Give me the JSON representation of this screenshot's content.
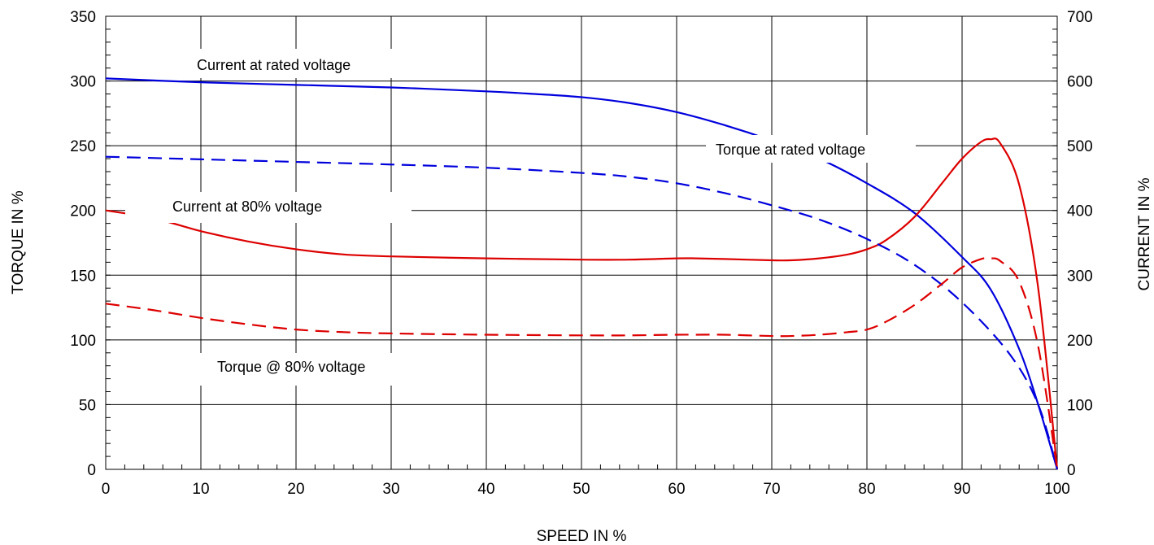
{
  "chart_data": {
    "type": "line",
    "xlabel": "SPEED IN %",
    "ylabel": "TORQUE IN %",
    "y2label": "CURRENT IN %",
    "xlim": [
      0,
      100
    ],
    "ylim": [
      0,
      350
    ],
    "y2lim": [
      0,
      700
    ],
    "xticks": [
      0,
      10,
      20,
      30,
      40,
      50,
      60,
      70,
      80,
      90,
      100
    ],
    "yticks": [
      0,
      50,
      100,
      150,
      200,
      250,
      300,
      350
    ],
    "y2ticks": [
      0,
      100,
      200,
      300,
      400,
      500,
      600,
      700
    ],
    "grid": true,
    "annotations": [
      {
        "text": "Current at rated voltage"
      },
      {
        "text": "Torque at rated voltage"
      },
      {
        "text": "Current at 80% voltage"
      },
      {
        "text": "Torque @ 80% voltage"
      }
    ],
    "series": [
      {
        "axis": "right",
        "color": "#0000dd",
        "style": "solid",
        "x": [
          0,
          10,
          20,
          30,
          40,
          45,
          50,
          55,
          60,
          65,
          70,
          75,
          80,
          85,
          90,
          93,
          96,
          98,
          100
        ],
        "y": [
          604,
          598,
          594,
          590,
          584,
          580,
          575,
          566,
          552,
          532,
          508,
          480,
          442,
          396,
          328,
          278,
          186,
          100,
          0
        ]
      },
      {
        "axis": "left",
        "color": "#dd0000",
        "style": "solid",
        "x": [
          0,
          5,
          10,
          15,
          20,
          25,
          30,
          40,
          50,
          55,
          60,
          62,
          65,
          70,
          72,
          75,
          78,
          80,
          82,
          85,
          88,
          90,
          92,
          93,
          94,
          96,
          98,
          100
        ],
        "y": [
          200,
          194,
          184,
          176,
          170,
          166,
          164.5,
          163,
          162,
          162,
          163,
          163,
          162.5,
          161.5,
          161.5,
          163,
          166,
          170,
          177,
          195,
          222,
          240,
          253,
          255,
          252,
          220,
          140,
          0
        ]
      },
      {
        "axis": "right",
        "color": "#0000dd",
        "style": "dashed",
        "x": [
          0,
          10,
          20,
          30,
          40,
          50,
          55,
          60,
          65,
          70,
          75,
          80,
          85,
          90,
          95,
          98,
          100
        ],
        "y": [
          483,
          479,
          475,
          471,
          466,
          458,
          452,
          442,
          427,
          408,
          386,
          356,
          316,
          258,
          178,
          100,
          0
        ]
      },
      {
        "axis": "left",
        "color": "#dd0000",
        "style": "dashed",
        "x": [
          0,
          5,
          10,
          15,
          20,
          25,
          30,
          40,
          50,
          55,
          60,
          62,
          65,
          70,
          72,
          75,
          78,
          80,
          82,
          85,
          88,
          90,
          92,
          93,
          94,
          96,
          98,
          100
        ],
        "y": [
          128,
          123,
          117,
          112,
          108,
          106,
          105,
          104,
          103.5,
          103.5,
          104,
          104,
          104,
          103,
          103,
          104,
          106,
          108,
          114,
          127,
          144,
          156,
          162.5,
          163,
          161,
          145,
          95,
          0
        ]
      }
    ]
  }
}
